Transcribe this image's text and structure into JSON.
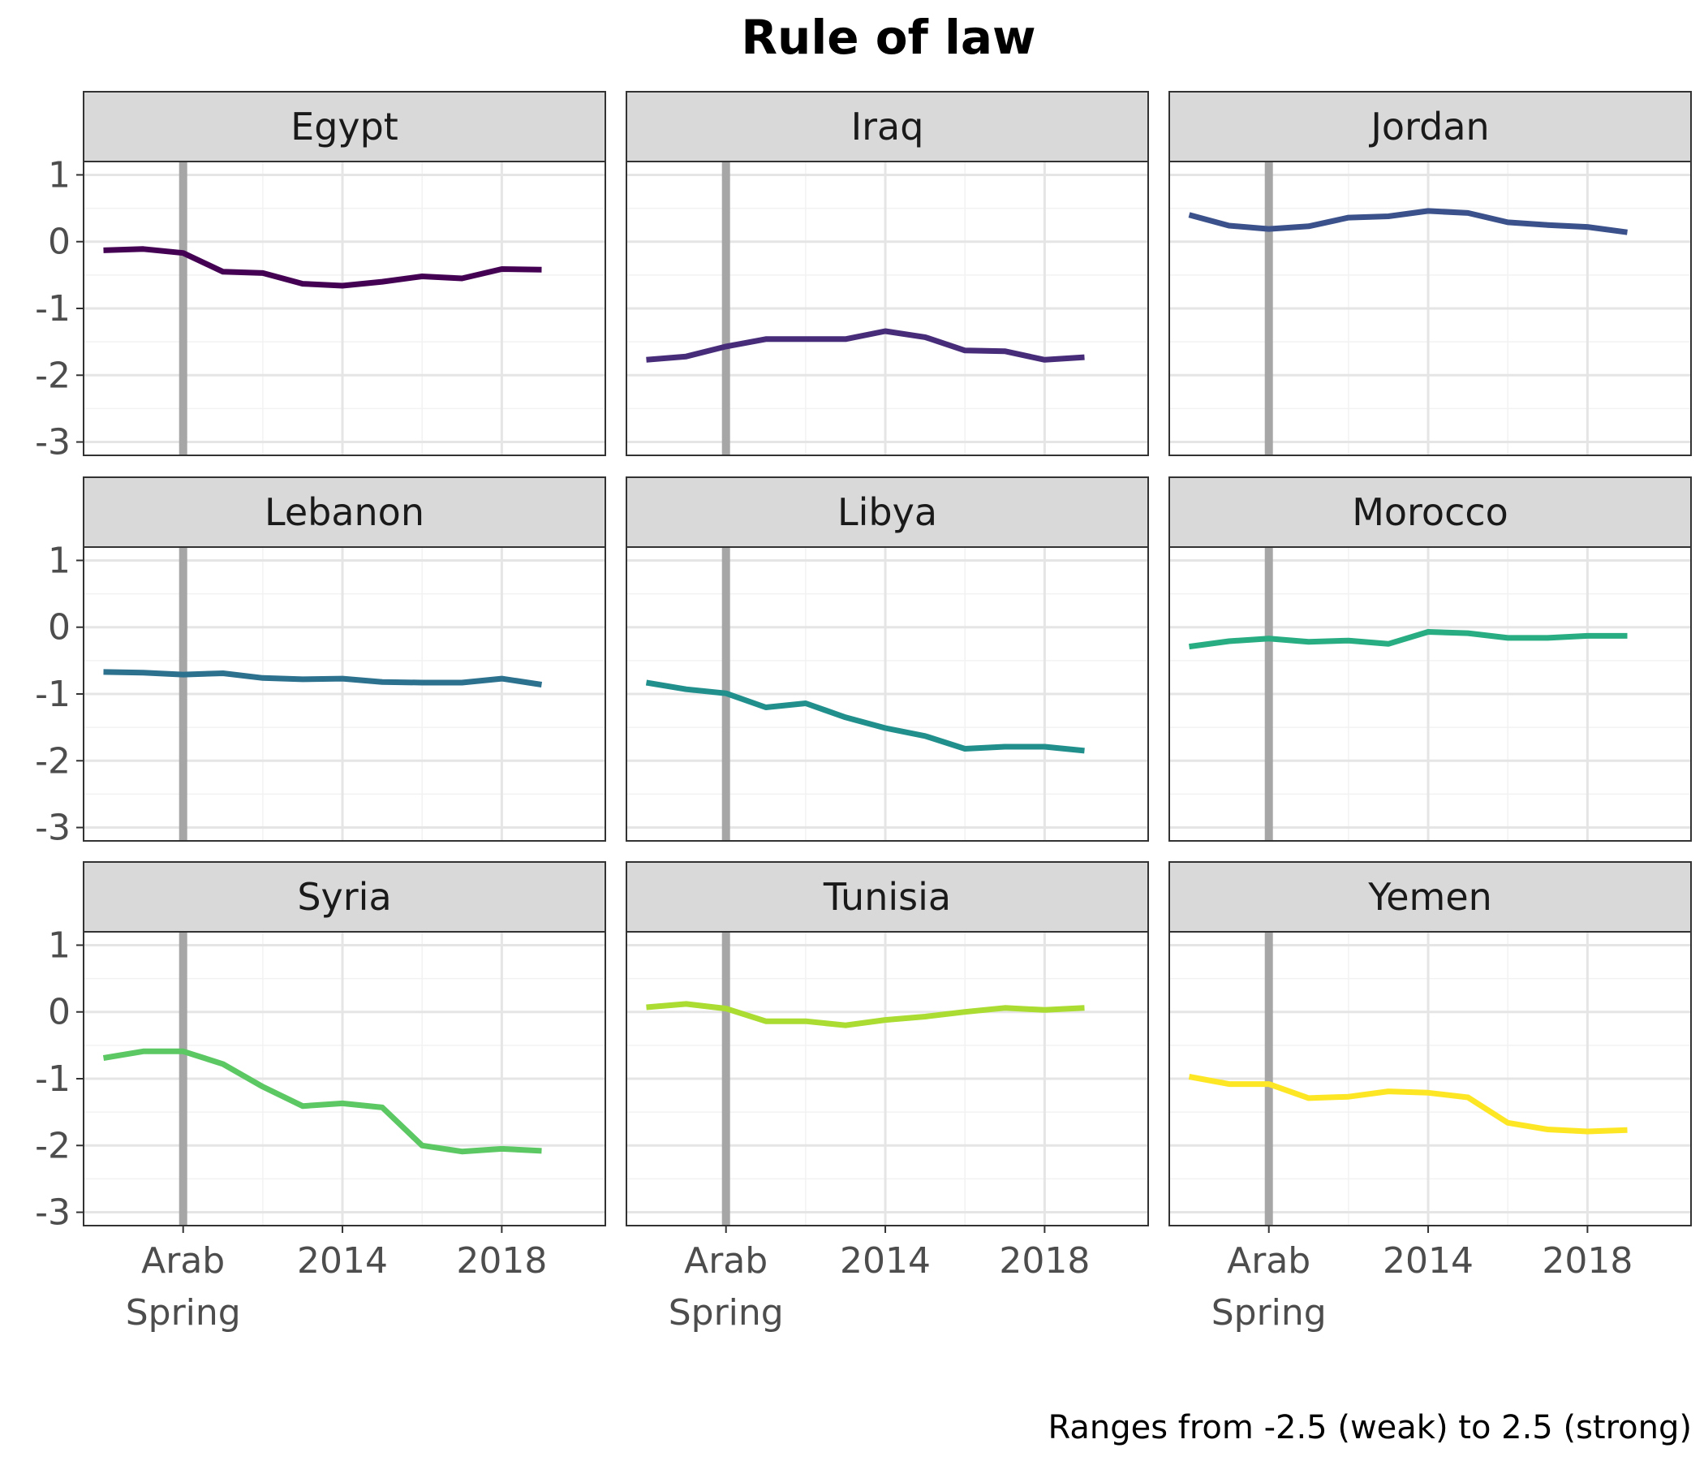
{
  "chart_data": {
    "type": "line",
    "title": "Rule of law",
    "caption": "Ranges from -2.5 (weak) to 2.5 (strong)",
    "x": [
      2009,
      2010,
      2011,
      2012,
      2013,
      2014,
      2015,
      2016,
      2017,
      2018,
      2019,
      2020
    ],
    "xlim": [
      2008.5,
      2021.6
    ],
    "ylim": [
      -3.2,
      1.2
    ],
    "x_ticks": [
      {
        "value": 2011,
        "label": "Arab\nSpring"
      },
      {
        "value": 2015,
        "label": "2014"
      },
      {
        "value": 2019,
        "label": "2018"
      }
    ],
    "y_ticks": [
      1,
      0,
      -1,
      -2,
      -3
    ],
    "y_tick_labels": [
      "1",
      "0",
      "-1",
      "-2",
      "-3"
    ],
    "reference_line": {
      "x": 2011,
      "color": "#a6a6a6"
    },
    "grid": true,
    "legend": "none",
    "facets": [
      {
        "name": "Egypt",
        "color": "#440154",
        "values": [
          -0.13,
          -0.11,
          -0.17,
          -0.45,
          -0.47,
          -0.63,
          -0.66,
          -0.6,
          -0.52,
          -0.55,
          -0.41,
          -0.42
        ]
      },
      {
        "name": "Iraq",
        "color": "#472c7a",
        "values": [
          -1.77,
          -1.72,
          -1.57,
          -1.46,
          -1.46,
          -1.46,
          -1.34,
          -1.43,
          -1.63,
          -1.64,
          -1.77,
          -1.73
        ]
      },
      {
        "name": "Jordan",
        "color": "#3b518b",
        "values": [
          0.4,
          0.24,
          0.19,
          0.23,
          0.36,
          0.38,
          0.46,
          0.43,
          0.29,
          0.25,
          0.22,
          0.14
        ]
      },
      {
        "name": "Lebanon",
        "color": "#2c718e",
        "values": [
          -0.67,
          -0.68,
          -0.71,
          -0.69,
          -0.76,
          -0.78,
          -0.77,
          -0.82,
          -0.83,
          -0.83,
          -0.77,
          -0.86
        ]
      },
      {
        "name": "Libya",
        "color": "#21908d",
        "values": [
          -0.83,
          -0.93,
          -0.99,
          -1.2,
          -1.14,
          -1.35,
          -1.51,
          -1.63,
          -1.82,
          -1.79,
          -1.79,
          -1.85
        ]
      },
      {
        "name": "Morocco",
        "color": "#27ad81",
        "values": [
          -0.29,
          -0.21,
          -0.17,
          -0.22,
          -0.2,
          -0.25,
          -0.07,
          -0.09,
          -0.16,
          -0.16,
          -0.13,
          -0.13
        ]
      },
      {
        "name": "Syria",
        "color": "#5cc863",
        "values": [
          -0.69,
          -0.59,
          -0.59,
          -0.78,
          -1.12,
          -1.41,
          -1.37,
          -1.43,
          -2.0,
          -2.09,
          -2.05,
          -2.08
        ]
      },
      {
        "name": "Tunisia",
        "color": "#aadc32",
        "values": [
          0.07,
          0.12,
          0.05,
          -0.14,
          -0.14,
          -0.2,
          -0.12,
          -0.07,
          0.0,
          0.06,
          0.03,
          0.06
        ]
      },
      {
        "name": "Yemen",
        "color": "#fde725",
        "values": [
          -0.97,
          -1.08,
          -1.08,
          -1.29,
          -1.27,
          -1.19,
          -1.21,
          -1.28,
          -1.66,
          -1.76,
          -1.79,
          -1.77
        ]
      }
    ]
  }
}
